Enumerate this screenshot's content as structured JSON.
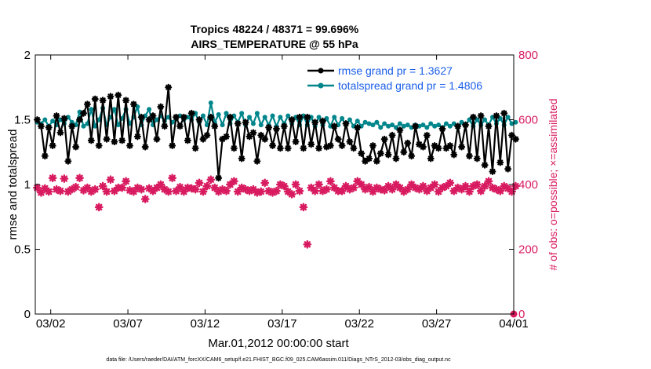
{
  "chart_data": {
    "type": "line",
    "title": "Tropics 48224 / 48371 = 99.696%",
    "subtitle": "AIRS_TEMPERATURE @ 55 hPa",
    "xlabel": "Mar.01,2012 00:00:00 start",
    "ylabel": "rmse and totalspread",
    "y2label": "# of obs: o=possible; ×=assimilated",
    "footnote": "data file: /Users/raeder/DAI/ATM_forcXX/CAM6_setup/f.e21.FHIST_BGC.f09_025.CAM6assim.011/Diags_NTrS_2012-03/obs_diag_output.nc",
    "xlim": [
      0,
      31
    ],
    "ylim": [
      0,
      2
    ],
    "y2lim": [
      0,
      800
    ],
    "x_ticks": [
      1,
      6,
      11,
      16,
      21,
      26,
      31
    ],
    "x_ticklabels": [
      "03/02",
      "03/07",
      "03/12",
      "03/17",
      "03/22",
      "03/27",
      "04/01"
    ],
    "y_ticks": [
      0,
      0.5,
      1,
      1.5,
      2
    ],
    "y_ticklabels": [
      "0",
      "0.5",
      "1",
      "1.5",
      "2"
    ],
    "y2_ticks": [
      0,
      200,
      400,
      600,
      800
    ],
    "y2_ticklabels": [
      "0",
      "200",
      "400",
      "600",
      "800"
    ],
    "legend_position": "top-right",
    "colors": {
      "rmse": "#000000",
      "spread": "#00868b",
      "obs": "#d81b60",
      "legend_text": "#1a5ee8"
    },
    "series": [
      {
        "name": "rmse grand pr = 1.3627",
        "axis": "left",
        "x_start": 0.125,
        "x_step": 0.25,
        "values": [
          1.5,
          1.45,
          1.22,
          1.44,
          1.3,
          1.53,
          1.4,
          1.51,
          1.18,
          1.45,
          1.29,
          1.5,
          1.55,
          1.62,
          1.34,
          1.66,
          1.3,
          1.65,
          1.35,
          1.68,
          1.33,
          1.69,
          1.34,
          1.65,
          1.3,
          1.62,
          1.37,
          1.52,
          1.29,
          1.5,
          1.53,
          1.35,
          1.6,
          1.45,
          1.75,
          1.3,
          1.52,
          1.45,
          1.52,
          1.34,
          1.55,
          1.28,
          1.5,
          1.35,
          1.38,
          1.52,
          1.45,
          1.05,
          1.35,
          1.37,
          1.52,
          1.28,
          1.47,
          1.2,
          1.48,
          1.37,
          1.4,
          1.18,
          1.38,
          1.35,
          1.44,
          1.3,
          1.43,
          1.28,
          1.45,
          1.28,
          1.5,
          1.33,
          1.52,
          1.28,
          1.52,
          1.31,
          1.48,
          1.28,
          1.49,
          1.29,
          1.3,
          1.45,
          1.35,
          1.3,
          1.47,
          1.33,
          1.28,
          1.44,
          1.24,
          1.18,
          1.2,
          1.3,
          1.18,
          1.24,
          1.35,
          1.23,
          1.38,
          1.2,
          1.42,
          1.25,
          1.32,
          1.22,
          1.45,
          1.31,
          1.29,
          1.38,
          1.2,
          1.3,
          1.28,
          1.43,
          1.28,
          1.3,
          1.23,
          1.45,
          1.29,
          1.46,
          1.22,
          1.52,
          1.2,
          1.53,
          1.15,
          1.45,
          1.1,
          1.53,
          1.17,
          1.55,
          1.12,
          1.38,
          1.35
        ]
      },
      {
        "name": "totalspread grand pr = 1.4806",
        "axis": "left",
        "x_start": 0.125,
        "x_step": 0.25,
        "values": [
          1.48,
          1.47,
          1.5,
          1.45,
          1.49,
          1.46,
          1.5,
          1.47,
          1.52,
          1.48,
          1.46,
          1.56,
          1.45,
          1.47,
          1.58,
          1.45,
          1.5,
          1.59,
          1.46,
          1.52,
          1.58,
          1.46,
          1.51,
          1.58,
          1.47,
          1.52,
          1.6,
          1.46,
          1.53,
          1.58,
          1.46,
          1.5,
          1.53,
          1.49,
          1.52,
          1.48,
          1.51,
          1.53,
          1.5,
          1.52,
          1.5,
          1.55,
          1.48,
          1.53,
          1.46,
          1.63,
          1.48,
          1.54,
          1.46,
          1.55,
          1.47,
          1.53,
          1.48,
          1.55,
          1.46,
          1.52,
          1.47,
          1.55,
          1.46,
          1.52,
          1.46,
          1.53,
          1.45,
          1.52,
          1.47,
          1.53,
          1.47,
          1.52,
          1.46,
          1.53,
          1.46,
          1.52,
          1.45,
          1.52,
          1.46,
          1.51,
          1.45,
          1.52,
          1.46,
          1.51,
          1.46,
          1.5,
          1.45,
          1.49,
          1.45,
          1.48,
          1.47,
          1.46,
          1.48,
          1.44,
          1.47,
          1.45,
          1.46,
          1.44,
          1.47,
          1.45,
          1.46,
          1.44,
          1.46,
          1.45,
          1.46,
          1.44,
          1.47,
          1.45,
          1.46,
          1.44,
          1.47,
          1.45,
          1.47,
          1.44,
          1.48,
          1.46,
          1.5,
          1.45,
          1.5,
          1.46,
          1.5,
          1.46,
          1.52,
          1.47,
          1.51,
          1.46,
          1.52,
          1.47,
          1.48
        ]
      },
      {
        "name": "# of obs assimilated",
        "axis": "right",
        "x_start": 0.125,
        "x_step": 0.25,
        "values": [
          390,
          375,
          388,
          378,
          420,
          385,
          380,
          418,
          378,
          385,
          392,
          420,
          382,
          390,
          378,
          385,
          330,
          395,
          378,
          415,
          380,
          390,
          390,
          410,
          382,
          378,
          390,
          385,
          355,
          388,
          380,
          390,
          400,
          385,
          378,
          420,
          380,
          392,
          378,
          390,
          388,
          385,
          405,
          378,
          395,
          415,
          390,
          378,
          385,
          380,
          400,
          410,
          378,
          390,
          385,
          380,
          385,
          375,
          378,
          405,
          380,
          375,
          380,
          400,
          395,
          378,
          370,
          400,
          380,
          330,
          215,
          390,
          380,
          400,
          380,
          385,
          410,
          390,
          380,
          380,
          395,
          385,
          390,
          410,
          400,
          385,
          392,
          378,
          390,
          385,
          382,
          395,
          385,
          400,
          390,
          378,
          385,
          400,
          390,
          385,
          395,
          380,
          390,
          400,
          378,
          390,
          395,
          405,
          380,
          390,
          385,
          395,
          378,
          395,
          400,
          380,
          395,
          410,
          390,
          385,
          380,
          395,
          388,
          378,
          395
        ]
      },
      {
        "name": "# of obs possible (final point)",
        "axis": "right",
        "x": [
          31
        ],
        "values": [
          0
        ]
      }
    ],
    "legend": [
      {
        "label": "rmse grand pr = 1.3627",
        "color": "#000000"
      },
      {
        "label": "totalspread grand pr = 1.4806",
        "color": "#00868b"
      }
    ]
  }
}
